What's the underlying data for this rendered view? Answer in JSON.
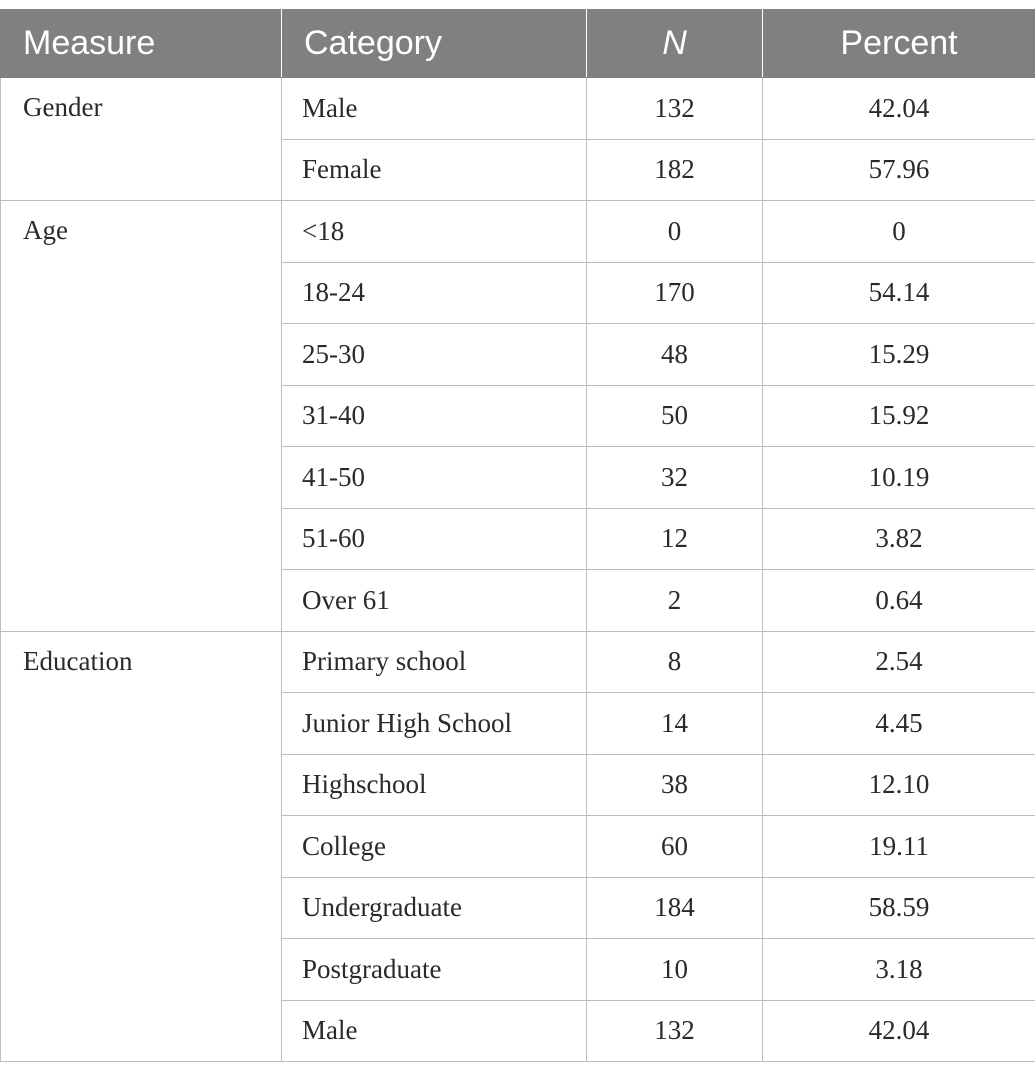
{
  "headers": {
    "measure": "Measure",
    "category": "Category",
    "n": "N",
    "percent": "Percent"
  },
  "groups": [
    {
      "measure": "Gender",
      "rows": [
        {
          "category": "Male",
          "n": "132",
          "percent": "42.04"
        },
        {
          "category": "Female",
          "n": "182",
          "percent": "57.96"
        }
      ]
    },
    {
      "measure": "Age",
      "rows": [
        {
          "category": "<18",
          "n": "0",
          "percent": "0"
        },
        {
          "category": "18-24",
          "n": "170",
          "percent": "54.14"
        },
        {
          "category": "25-30",
          "n": "48",
          "percent": "15.29"
        },
        {
          "category": "31-40",
          "n": "50",
          "percent": "15.92"
        },
        {
          "category": "41-50",
          "n": "32",
          "percent": "10.19"
        },
        {
          "category": "51-60",
          "n": "12",
          "percent": "3.82"
        },
        {
          "category": "Over 61",
          "n": "2",
          "percent": "0.64"
        }
      ]
    },
    {
      "measure": "Education",
      "rows": [
        {
          "category": "Primary school",
          "n": "8",
          "percent": "2.54"
        },
        {
          "category": "Junior High School",
          "n": "14",
          "percent": "4.45"
        },
        {
          "category": "Highschool",
          "n": "38",
          "percent": "12.10"
        },
        {
          "category": "College",
          "n": "60",
          "percent": "19.11"
        },
        {
          "category": "Undergraduate",
          "n": "184",
          "percent": "58.59"
        },
        {
          "category": "Postgraduate",
          "n": "10",
          "percent": "3.18"
        },
        {
          "category": "Male",
          "n": "132",
          "percent": "42.04"
        }
      ]
    }
  ]
}
